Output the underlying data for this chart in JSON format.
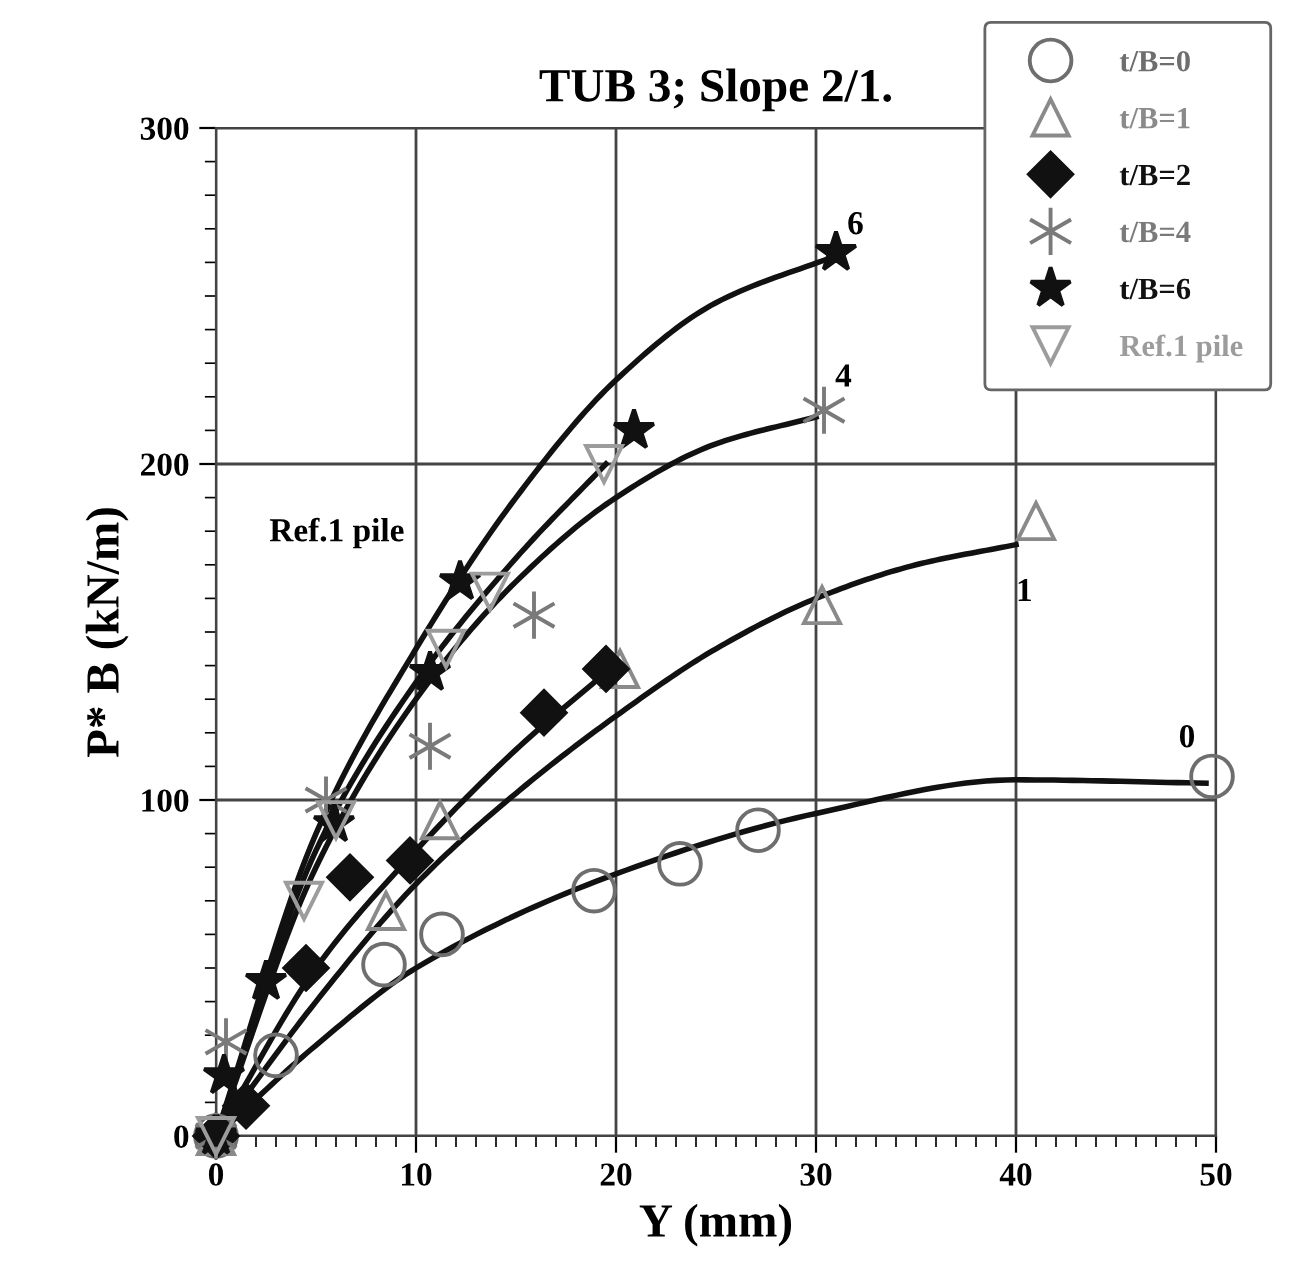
{
  "chart_data": {
    "type": "scatter",
    "title": "TUB 3; Slope 2/1.",
    "xlabel": "Y (mm)",
    "ylabel": "P* B (kN/m)",
    "xlim": [
      0,
      50
    ],
    "ylim": [
      0,
      300
    ],
    "xticks": [
      0,
      10,
      20,
      30,
      40,
      50
    ],
    "yticks": [
      0,
      100,
      200,
      300
    ],
    "grid": true,
    "legend": "top right",
    "series": [
      {
        "name": "t/B=0",
        "color": "#6e6e6e",
        "marker": "circle",
        "x": [
          0,
          3.0,
          8.4,
          11.3,
          18.9,
          23.2,
          27.1,
          49.8
        ],
        "values": [
          0,
          24,
          51,
          60,
          73,
          81,
          91,
          107
        ]
      },
      {
        "name": "t/B=1",
        "color": "#8a8a8a",
        "marker": "triangle",
        "x": [
          0,
          8.5,
          11.2,
          20.2,
          30.3,
          41
        ],
        "values": [
          0,
          67,
          94,
          139,
          158,
          183
        ]
      },
      {
        "name": "t/B=2",
        "color": "#111111",
        "marker": "diamond",
        "x": [
          0,
          1.5,
          4.5,
          6.7,
          9.7,
          16.4,
          19.5
        ],
        "values": [
          0,
          9,
          50,
          77,
          82,
          126,
          139
        ]
      },
      {
        "name": "t/B=4",
        "color": "#7a7a7a",
        "marker": "cross",
        "x": [
          0,
          0.5,
          5.5,
          10.7,
          15.9,
          30.4
        ],
        "values": [
          0,
          28,
          100,
          116,
          155,
          216
        ]
      },
      {
        "name": "t/B=6",
        "color": "#111111",
        "marker": "star",
        "x": [
          0,
          0.4,
          2.5,
          5.9,
          10.7,
          12.2,
          20.9,
          31
        ],
        "values": [
          0,
          18,
          46,
          93,
          138,
          165,
          210,
          263
        ]
      },
      {
        "name": "Ref.1 pile",
        "color": "#9c9c9c",
        "marker": "triangle_down",
        "x": [
          0,
          4.4,
          6,
          11.5,
          13.7,
          19.4
        ],
        "values": [
          0,
          70,
          94,
          145,
          162,
          200
        ]
      },
      {
        "type": "line",
        "color": "#111111",
        "x": [
          0,
          5,
          10,
          15,
          20,
          25,
          31
        ],
        "values": [
          0,
          90,
          145,
          190,
          225,
          248,
          262
        ]
      },
      {
        "type": "line",
        "color": "#111111",
        "x": [
          0,
          5,
          10,
          15,
          19.5
        ],
        "values": [
          0,
          85,
          135,
          172,
          200
        ]
      },
      {
        "type": "line",
        "color": "#111111",
        "x": [
          0,
          5,
          10,
          15,
          20,
          25,
          30
        ],
        "values": [
          0,
          80,
          130,
          165,
          190,
          206,
          214
        ]
      },
      {
        "type": "line",
        "color": "#111111",
        "x": [
          0,
          5,
          10,
          15,
          19.5
        ],
        "values": [
          0,
          50,
          85,
          115,
          138
        ]
      },
      {
        "type": "line",
        "color": "#111111",
        "x": [
          0,
          5,
          10,
          15,
          20,
          25,
          30,
          35,
          40
        ],
        "values": [
          0,
          40,
          75,
          102,
          125,
          145,
          160,
          170,
          176
        ]
      },
      {
        "type": "line",
        "color": "#111111",
        "x": [
          0,
          5,
          10,
          20,
          30,
          40,
          49.5
        ],
        "values": [
          0,
          27,
          50,
          78,
          96,
          106,
          105
        ]
      }
    ],
    "annotations": [
      {
        "text": "6",
        "x": 31,
        "y": 263
      },
      {
        "text": "4",
        "x": 30.4,
        "y": 216
      },
      {
        "text": "1",
        "x": 40,
        "y": 176
      },
      {
        "text": "0",
        "x": 49.8,
        "y": 107
      },
      {
        "text": "Ref.1 pile",
        "x": 12.2,
        "y": 165
      }
    ]
  }
}
